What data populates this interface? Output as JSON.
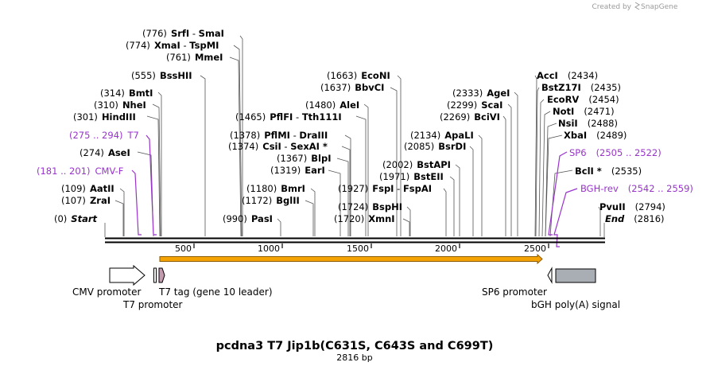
{
  "credit": {
    "prefix": "Created by",
    "brand": "SnapGene"
  },
  "title": "pcdna3 T7 Jip1b(C631S, C643S and C699T)",
  "length_label": "2816 bp",
  "sites": [
    {
      "pos": "(776)",
      "name": "SrfI",
      "sep": " - ",
      "name2": "SmaI"
    },
    {
      "pos": "(774)",
      "name": "XmaI",
      "sep": " - ",
      "name2": "TspMI"
    },
    {
      "pos": "(761)",
      "name": "MmeI"
    },
    {
      "pos": "(555)",
      "name": "BssHII"
    },
    {
      "pos": "(314)",
      "name": "BmtI"
    },
    {
      "pos": "(310)",
      "name": "NheI"
    },
    {
      "pos": "(301)",
      "name": "HindIII"
    },
    {
      "pos": "(275 .. 294)",
      "name": "T7",
      "primer": true
    },
    {
      "pos": "(274)",
      "name": "AseI"
    },
    {
      "pos": "(181 .. 201)",
      "name": "CMV-F",
      "primer": true
    },
    {
      "pos": "(109)",
      "name": "AatII"
    },
    {
      "pos": "(107)",
      "name": "ZraI"
    },
    {
      "pos": "(0)",
      "name": "Start",
      "italic": true
    },
    {
      "pos": "(1663)",
      "name": "EcoNI"
    },
    {
      "pos": "(1637)",
      "name": "BbvCI"
    },
    {
      "pos": "(1480)",
      "name": "AleI"
    },
    {
      "pos": "(1465)",
      "name": "PflFI",
      "sep": " - ",
      "name2": "Tth111I"
    },
    {
      "pos": "(1378)",
      "name": "PflMI",
      "sep": " - ",
      "name2": "DraIII"
    },
    {
      "pos": "(1374)",
      "name": "CsiI",
      "sep": " - ",
      "name2": "SexAI *"
    },
    {
      "pos": "(1367)",
      "name": "BlpI"
    },
    {
      "pos": "(1319)",
      "name": "EarI"
    },
    {
      "pos": "(1180)",
      "name": "BmrI"
    },
    {
      "pos": "(1172)",
      "name": "BglII"
    },
    {
      "pos": "(990)",
      "name": "PasI"
    },
    {
      "pos": "(2002)",
      "name": "BstAPI"
    },
    {
      "pos": "(1971)",
      "name": "BstEII"
    },
    {
      "pos": "(1927)",
      "name": "FspI",
      "sep": " - ",
      "name2": "FspAI"
    },
    {
      "pos": "(1724)",
      "name": "BspHI"
    },
    {
      "pos": "(1720)",
      "name": "XmnI"
    },
    {
      "pos": "(2333)",
      "name": "AgeI"
    },
    {
      "pos": "(2299)",
      "name": "ScaI"
    },
    {
      "pos": "(2269)",
      "name": "BciVI"
    },
    {
      "pos": "(2134)",
      "name": "ApaLI"
    },
    {
      "pos": "(2085)",
      "name": "BsrDI"
    },
    {
      "name": "AccI",
      "pos": "(2434)"
    },
    {
      "name": "BstZ17I",
      "pos": "(2435)"
    },
    {
      "name": "EcoRV",
      "pos": "(2454)"
    },
    {
      "name": "NotI",
      "pos": "(2471)"
    },
    {
      "name": "NsiI",
      "pos": "(2488)"
    },
    {
      "name": "XbaI",
      "pos": "(2489)"
    },
    {
      "name": "SP6",
      "pos": "(2505 .. 2522)",
      "primer": true
    },
    {
      "name": "BclI *",
      "pos": "(2535)"
    },
    {
      "name": "BGH-rev",
      "pos": "(2542 .. 2559)",
      "primer": true
    },
    {
      "name": "PvuII",
      "pos": "(2794)"
    },
    {
      "name": "End",
      "pos": "(2816)",
      "italic": true
    }
  ],
  "ticks": [
    "500",
    "1000",
    "1500",
    "2000",
    "2500"
  ],
  "features": [
    {
      "label": "CMV promoter"
    },
    {
      "label": "T7 tag (gene 10 leader)"
    },
    {
      "label": "T7 promoter"
    },
    {
      "label": "SP6 promoter"
    },
    {
      "label": "bGH poly(A) signal"
    }
  ],
  "colors": {
    "primer": "#9933cc",
    "orf_fill": "#f5a300",
    "orf_border": "#8a5a00",
    "polyA": "#a9adb4"
  }
}
